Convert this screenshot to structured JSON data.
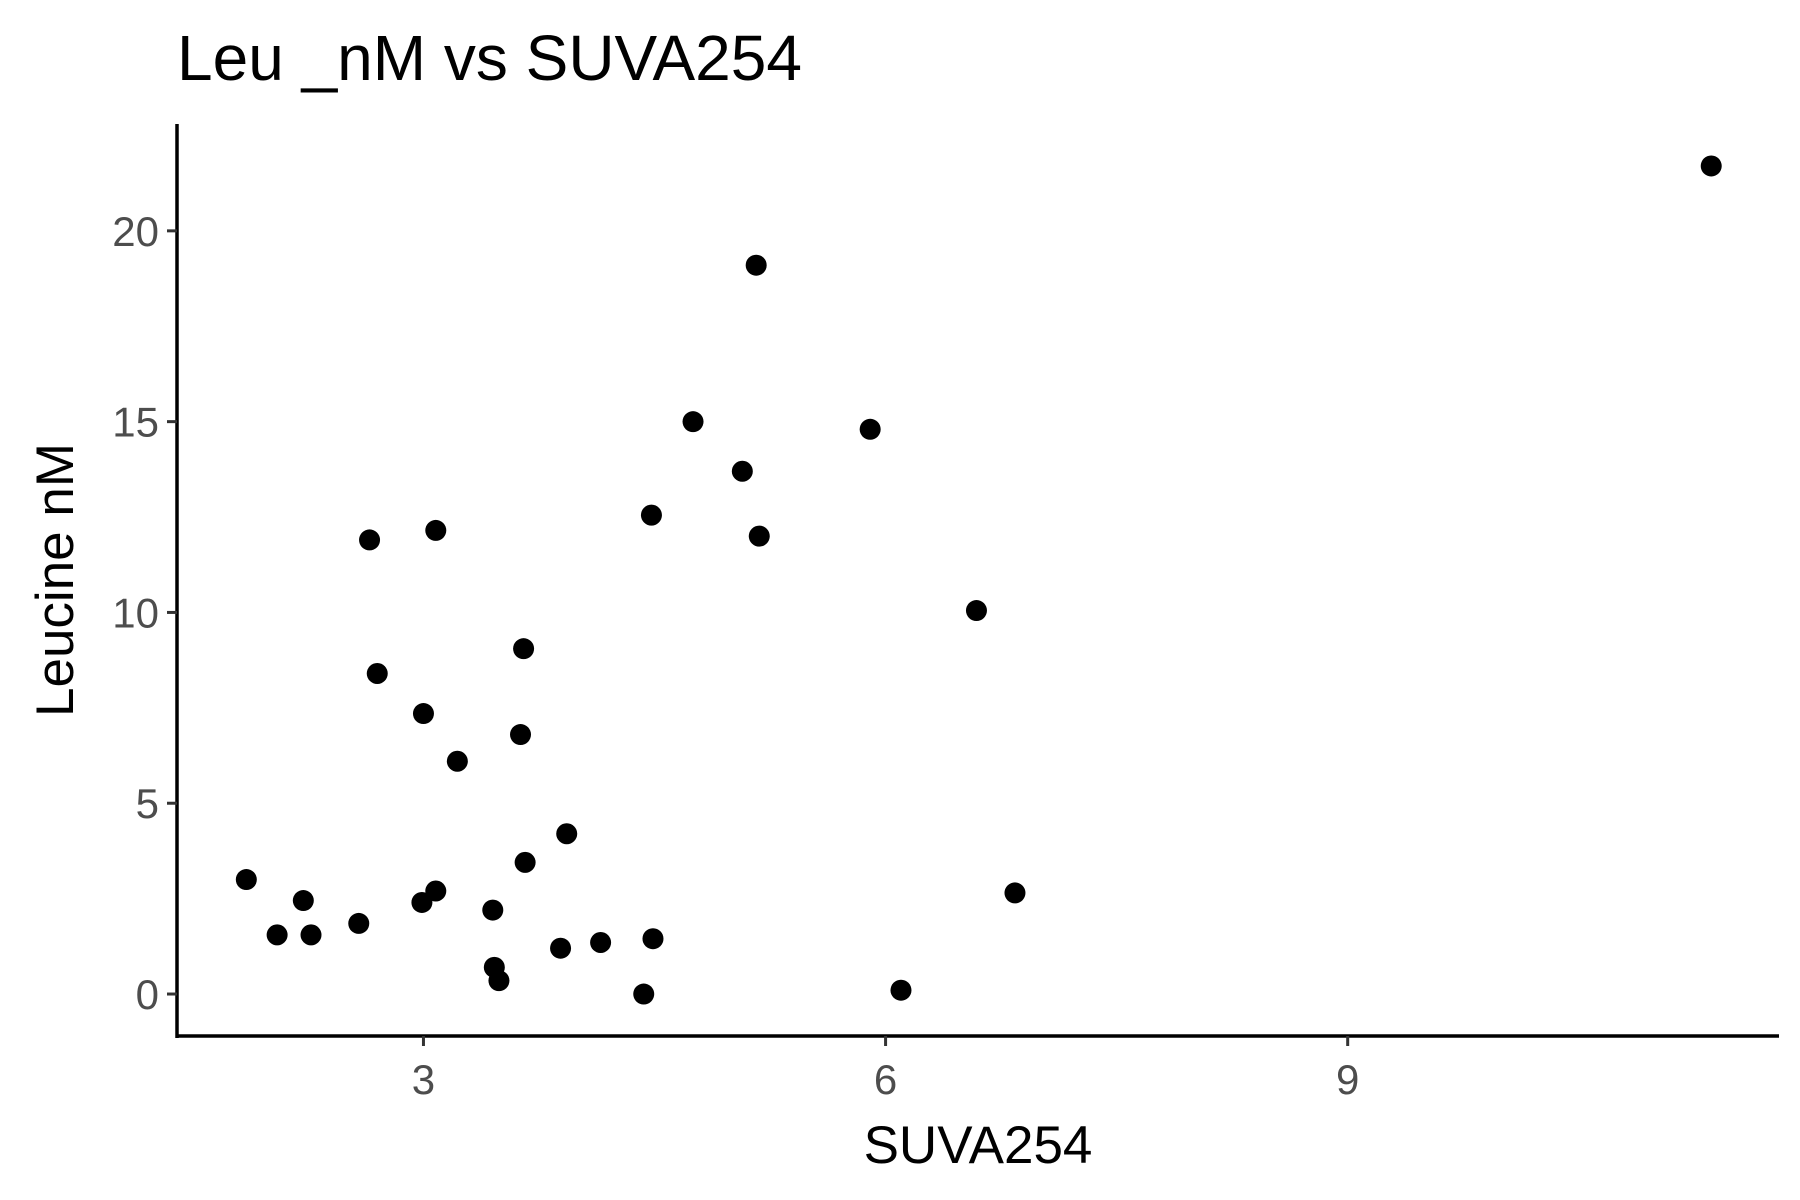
{
  "chart_data": {
    "type": "scatter",
    "title": "Leu _nM vs SUVA254",
    "xlabel": "SUVA254",
    "ylabel": "Leucine nM",
    "xlim": [
      1.4,
      11.8
    ],
    "ylim": [
      -1.1,
      22.8
    ],
    "x_ticks": [
      3,
      6,
      9
    ],
    "y_ticks": [
      0,
      5,
      10,
      15,
      20
    ],
    "grid": false,
    "legend": "none",
    "point_color": "#000000",
    "points": [
      {
        "x": 1.85,
        "y": 3.0
      },
      {
        "x": 2.05,
        "y": 1.55
      },
      {
        "x": 2.22,
        "y": 2.45
      },
      {
        "x": 2.27,
        "y": 1.55
      },
      {
        "x": 2.58,
        "y": 1.85
      },
      {
        "x": 2.65,
        "y": 11.9
      },
      {
        "x": 2.7,
        "y": 8.4
      },
      {
        "x": 2.99,
        "y": 2.4
      },
      {
        "x": 3.0,
        "y": 7.35
      },
      {
        "x": 3.08,
        "y": 12.15
      },
      {
        "x": 3.08,
        "y": 2.7
      },
      {
        "x": 3.22,
        "y": 6.1
      },
      {
        "x": 3.45,
        "y": 2.2
      },
      {
        "x": 3.46,
        "y": 0.7
      },
      {
        "x": 3.49,
        "y": 0.35
      },
      {
        "x": 3.63,
        "y": 6.8
      },
      {
        "x": 3.65,
        "y": 9.05
      },
      {
        "x": 3.66,
        "y": 3.45
      },
      {
        "x": 3.89,
        "y": 1.2
      },
      {
        "x": 3.93,
        "y": 4.2
      },
      {
        "x": 4.15,
        "y": 1.35
      },
      {
        "x": 4.43,
        "y": 0.0
      },
      {
        "x": 4.48,
        "y": 12.55
      },
      {
        "x": 4.49,
        "y": 1.45
      },
      {
        "x": 4.75,
        "y": 15.0
      },
      {
        "x": 5.07,
        "y": 13.7
      },
      {
        "x": 5.16,
        "y": 19.1
      },
      {
        "x": 5.18,
        "y": 12.0
      },
      {
        "x": 5.9,
        "y": 14.8
      },
      {
        "x": 6.1,
        "y": 0.1
      },
      {
        "x": 6.59,
        "y": 10.05
      },
      {
        "x": 6.84,
        "y": 2.65
      },
      {
        "x": 11.36,
        "y": 21.7
      }
    ]
  }
}
